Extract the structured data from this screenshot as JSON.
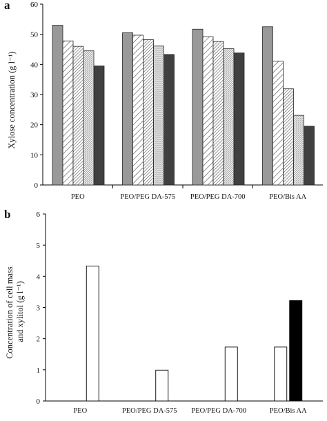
{
  "chart_data": [
    {
      "type": "bar",
      "panel": "a",
      "ylabel": "Xylose concentration (g l⁻¹)",
      "ylim": [
        0,
        60
      ],
      "yticks": [
        0,
        10,
        20,
        30,
        40,
        50,
        60
      ],
      "categories": [
        "PEO",
        "PEO/PEG DA-575",
        "PEO/PEG DA-700",
        "PEO/Bis AA"
      ],
      "series": [
        {
          "values": [
            53,
            50.5,
            51.7,
            52.5
          ],
          "fill": "#999999",
          "pattern": "solid"
        },
        {
          "values": [
            47.8,
            49.7,
            49.2,
            41.1
          ],
          "fill": "#ffffff",
          "pattern": "hatch-sparse"
        },
        {
          "values": [
            46,
            48.2,
            47.6,
            31.9
          ],
          "fill": "#ffffff",
          "pattern": "hatch-dense"
        },
        {
          "values": [
            44.5,
            46.1,
            45.2,
            23.1
          ],
          "fill": "#ffffff",
          "pattern": "dots"
        },
        {
          "values": [
            39.5,
            43.3,
            43.8,
            19.5
          ],
          "fill": "#404040",
          "pattern": "solid"
        }
      ]
    },
    {
      "type": "bar",
      "panel": "b",
      "ylabel_lines": [
        "Concentration of cell mass",
        "and xylitol (g l⁻¹)"
      ],
      "ylim": [
        0,
        6
      ],
      "yticks": [
        0,
        1,
        2,
        3,
        4,
        5,
        6
      ],
      "categories": [
        "PEO",
        "PEO/PEG DA-575",
        "PEO/PEG DA-700",
        "PEO/Bis AA"
      ],
      "series": [
        {
          "values": [
            4.33,
            0.99,
            1.73,
            1.73
          ],
          "fill": "#ffffff"
        },
        {
          "values": [
            0,
            0,
            0,
            3.22
          ],
          "fill": "#000000"
        }
      ]
    }
  ]
}
